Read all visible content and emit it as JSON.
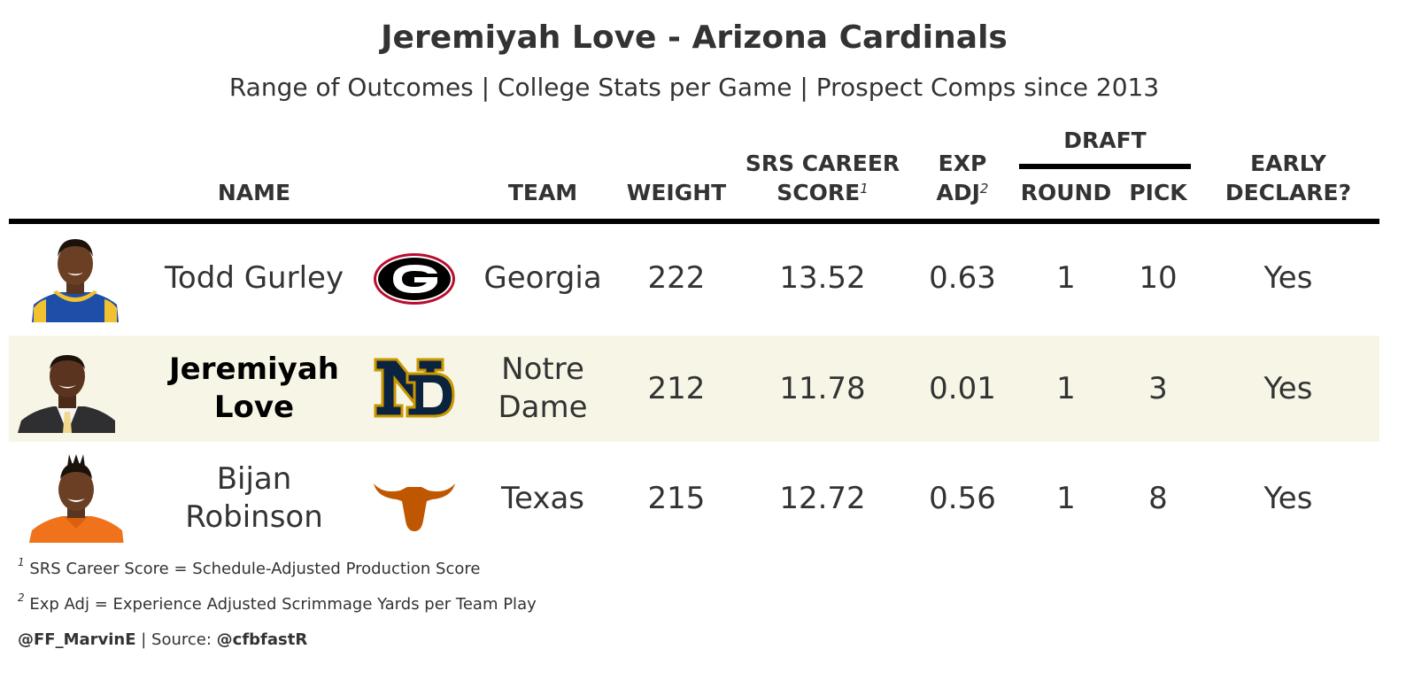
{
  "title": "Jeremiyah Love - Arizona Cardinals",
  "subtitle": "Range of Outcomes | College Stats per Game | Prospect Comps since 2013",
  "headers": {
    "name": "NAME",
    "team": "TEAM",
    "weight": "WEIGHT",
    "srs_line1": "SRS CAREER",
    "srs_line2": "SCORE",
    "srs_note": "1",
    "exp_line1": "EXP",
    "exp_line2": "ADJ",
    "exp_note": "2",
    "draft": "DRAFT",
    "round": "ROUND",
    "pick": "PICK",
    "early_line1": "EARLY",
    "early_line2": "DECLARE?"
  },
  "rows": [
    {
      "name_line1": "Todd Gurley",
      "name_line2": "",
      "team_line1": "Georgia",
      "team_line2": "",
      "team_logo": "georgia-g-logo",
      "weight": "222",
      "srs": "13.52",
      "exp_adj": "0.63",
      "round": "1",
      "pick": "10",
      "early": "Yes"
    },
    {
      "name_line1": "Jeremiyah",
      "name_line2": "Love",
      "team_line1": "Notre",
      "team_line2": "Dame",
      "team_logo": "notre-dame-nd-logo",
      "weight": "212",
      "srs": "11.78",
      "exp_adj": "0.01",
      "round": "1",
      "pick": "3",
      "early": "Yes"
    },
    {
      "name_line1": "Bijan",
      "name_line2": "Robinson",
      "team_line1": "Texas",
      "team_line2": "",
      "team_logo": "texas-longhorn-logo",
      "weight": "215",
      "srs": "12.72",
      "exp_adj": "0.56",
      "round": "1",
      "pick": "8",
      "early": "Yes"
    }
  ],
  "footnotes": {
    "note1_mark": "1",
    "note1": "SRS Career Score = Schedule-Adjusted Production Score",
    "note2_mark": "2",
    "note2": "Exp Adj = Experience Adjusted Scrimmage Yards per Team Play",
    "credit_handle": "@FF_MarvinE",
    "credit_sep": " | Source: ",
    "credit_source": "@cfbfastR"
  },
  "colors": {
    "highlight_row": "#f7f6e6",
    "georgia_red": "#ba0c2f",
    "notre_dame_navy": "#0c2340",
    "notre_dame_gold": "#c99700",
    "texas_orange": "#bf5700"
  }
}
